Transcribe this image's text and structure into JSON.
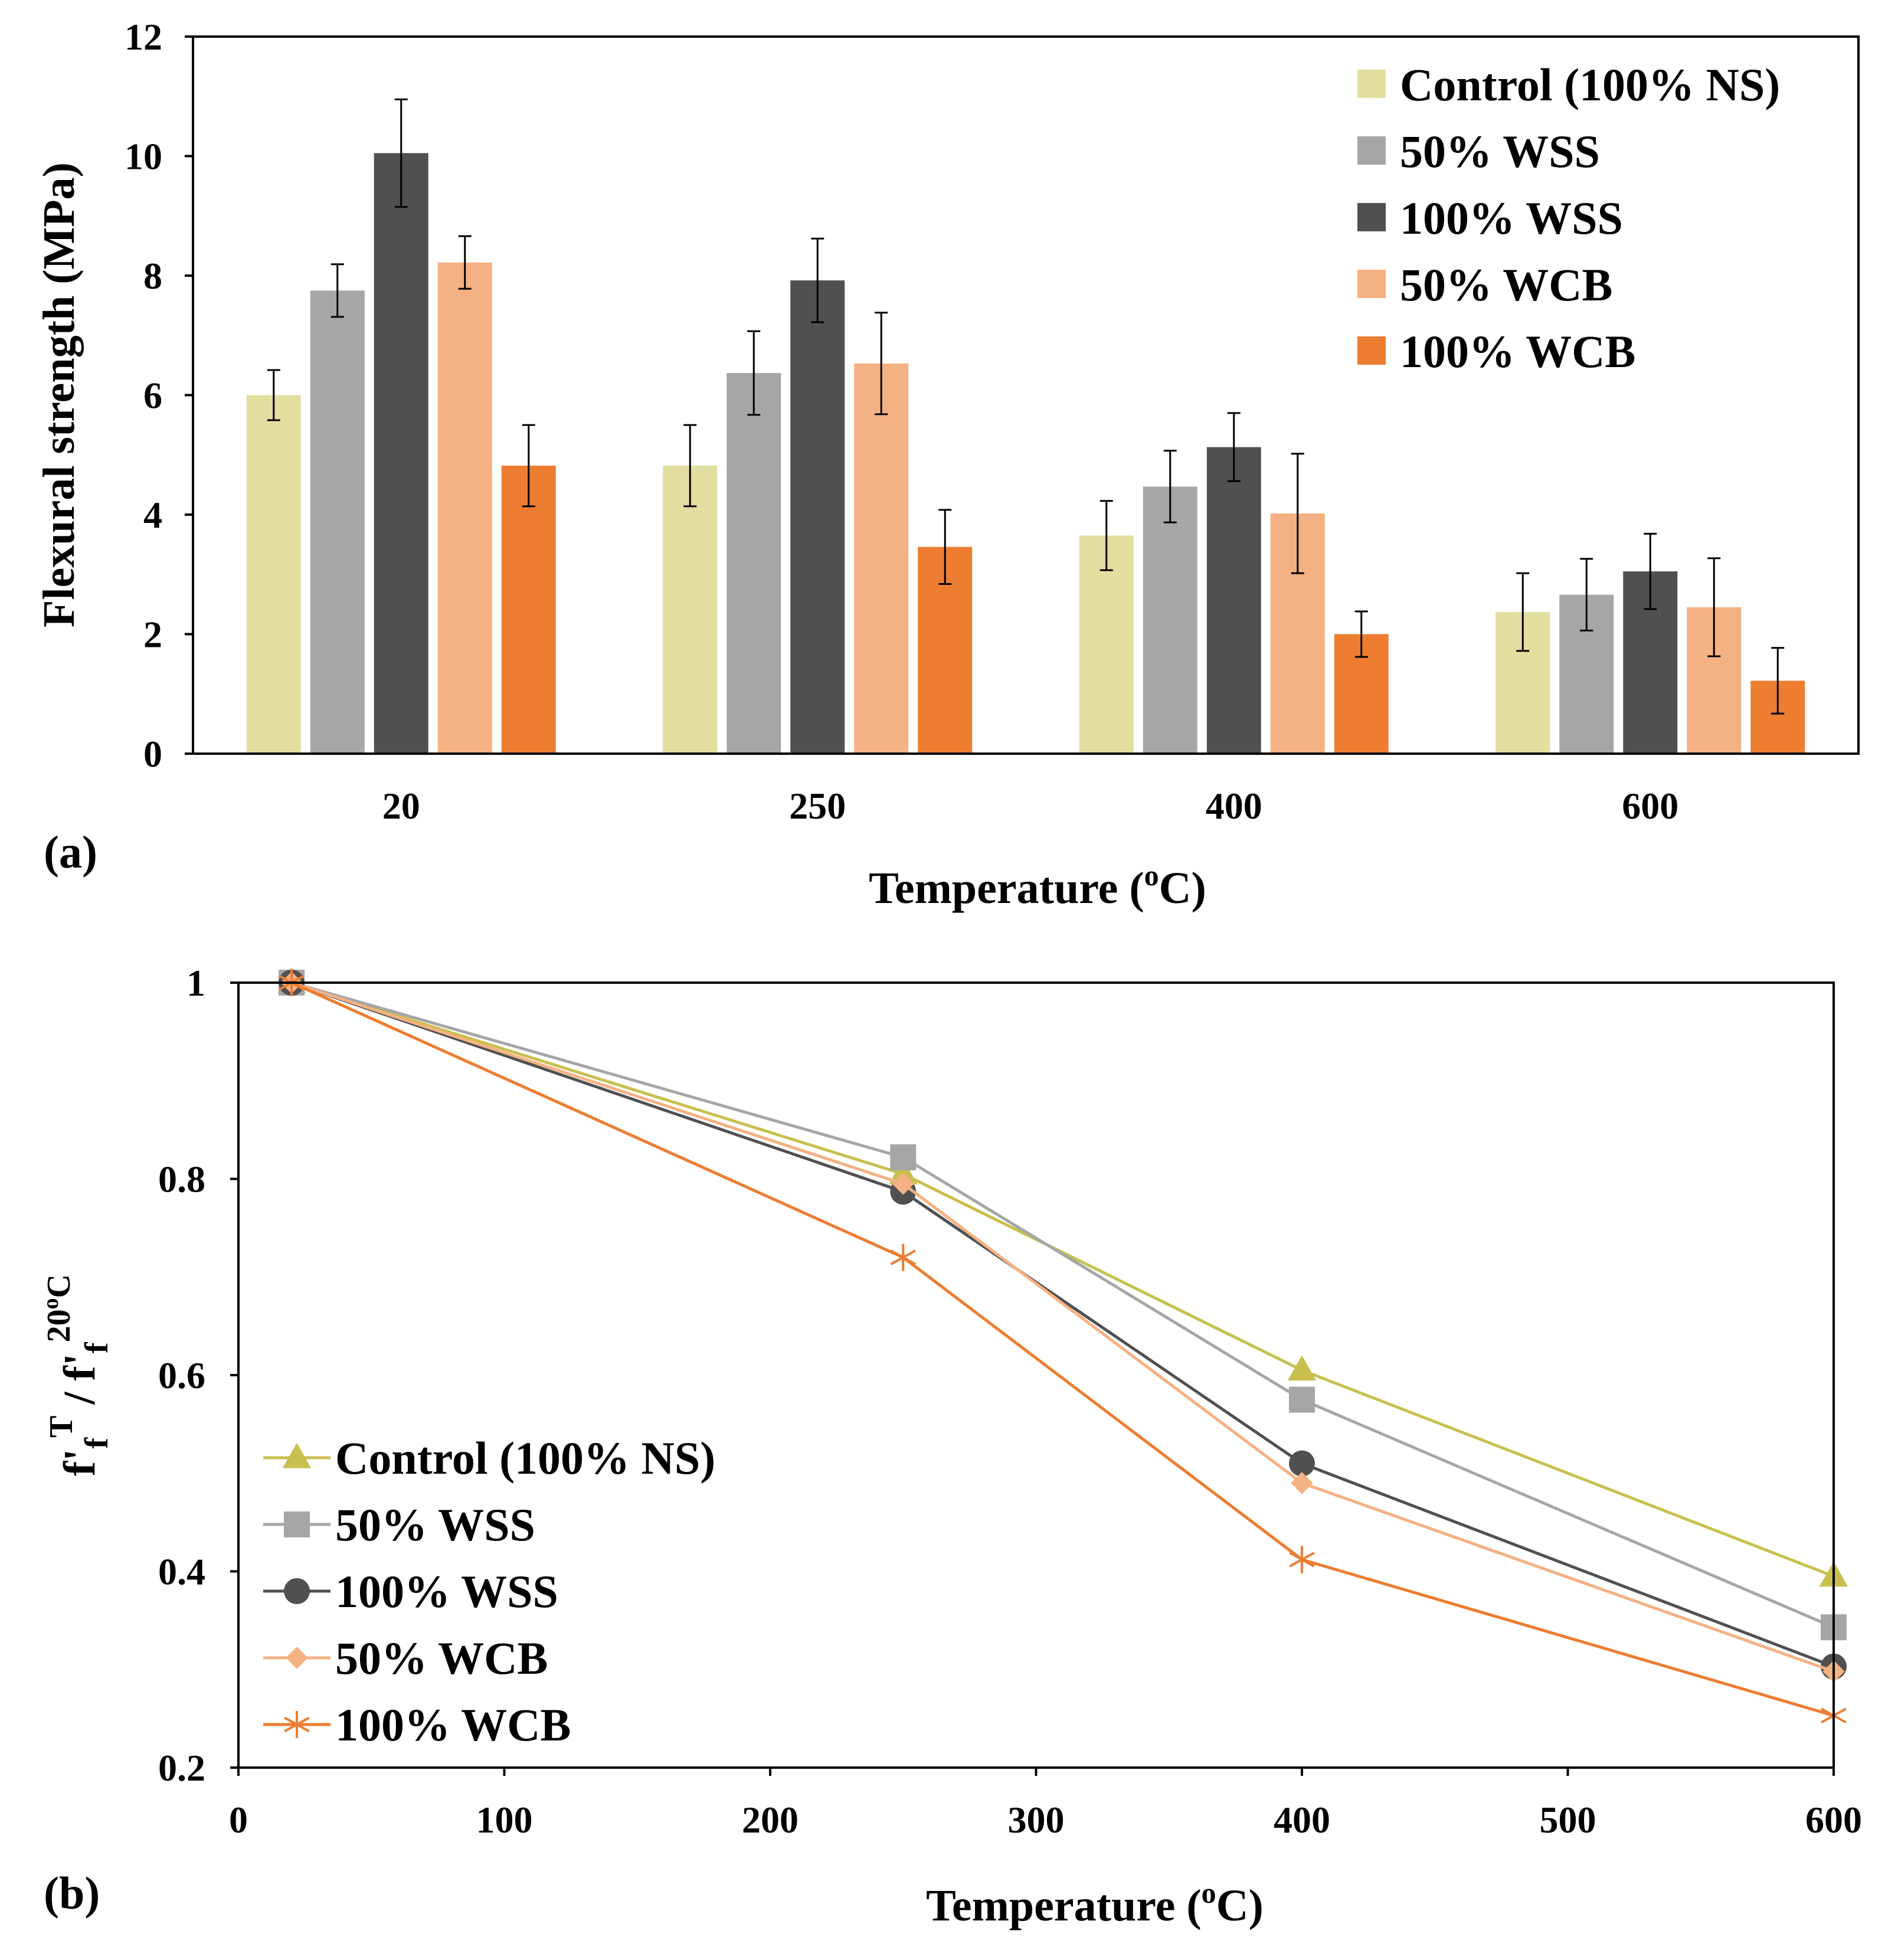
{
  "colors": {
    "control": "#e2de9f",
    "wss50": "#a6a6a6",
    "wss100": "#505050",
    "wcb50": "#f4b183",
    "wcb100": "#ed7d31",
    "control_line": "#c9bf4f",
    "wss50_line": "#a6a6a6",
    "wss100_line": "#505050",
    "wcb50_line": "#f4b183",
    "wcb100_line": "#ed7d31"
  },
  "chart_data": [
    {
      "type": "bar",
      "panel_label": "(a)",
      "categories": [
        "20",
        "250",
        "400",
        "600"
      ],
      "xlabel": "Temperature (",
      "xlabel_sup": "o",
      "xlabel_tail": "C)",
      "ylabel": "Flexural strength (MPa)",
      "ylim": [
        0,
        12
      ],
      "yticks": [
        0,
        2,
        4,
        6,
        8,
        10,
        12
      ],
      "legend_position": "top-right",
      "series": [
        {
          "name": "Control (100% NS)",
          "color_key": "control",
          "values": [
            6.0,
            4.82,
            3.65,
            2.37
          ],
          "errors": [
            0.42,
            0.68,
            0.58,
            0.65
          ]
        },
        {
          "name": "50% WSS",
          "color_key": "wss50",
          "values": [
            7.75,
            6.37,
            4.47,
            2.66
          ],
          "errors": [
            0.44,
            0.7,
            0.6,
            0.6
          ]
        },
        {
          "name": "100% WSS",
          "color_key": "wss100",
          "values": [
            10.05,
            7.92,
            5.13,
            3.05
          ],
          "errors": [
            0.9,
            0.7,
            0.57,
            0.63
          ]
        },
        {
          "name": "50% WCB",
          "color_key": "wcb50",
          "values": [
            8.22,
            6.53,
            4.02,
            2.45
          ],
          "errors": [
            0.44,
            0.85,
            1.0,
            0.82
          ]
        },
        {
          "name": "100% WCB",
          "color_key": "wcb100",
          "values": [
            4.82,
            3.46,
            2.0,
            1.22
          ],
          "errors": [
            0.68,
            0.62,
            0.38,
            0.55
          ]
        }
      ]
    },
    {
      "type": "line",
      "panel_label": "(b)",
      "x": [
        20,
        250,
        400,
        600
      ],
      "xlim": [
        0,
        600
      ],
      "xticks": [
        0,
        100,
        200,
        300,
        400,
        500,
        600
      ],
      "ylim": [
        0.2,
        1.0
      ],
      "yticks": [
        0.2,
        0.4,
        0.6,
        0.8,
        1.0
      ],
      "ytick_labels": [
        "0.2",
        "0.4",
        "0.6",
        "0.8",
        "1"
      ],
      "xlabel": "Temperature (",
      "xlabel_sup": "o",
      "xlabel_tail": "C)",
      "ylabel_main": "f'",
      "ylabel_sub1": "f",
      "ylabel_sup1": "T",
      "ylabel_mid": " / f'",
      "ylabel_sub2": "f",
      "ylabel_sup2": "20",
      "ylabel_sup2b": "o",
      "ylabel_sup2c": "C",
      "legend_position": "bottom-left",
      "series": [
        {
          "name": "Control (100% NS)",
          "color_key": "control_line",
          "marker": "triangle",
          "values": [
            1.0,
            0.805,
            0.605,
            0.395
          ]
        },
        {
          "name": "50% WSS",
          "color_key": "wss50_line",
          "marker": "square",
          "values": [
            1.0,
            0.822,
            0.575,
            0.343
          ]
        },
        {
          "name": "100% WSS",
          "color_key": "wss100_line",
          "marker": "circle",
          "values": [
            1.0,
            0.787,
            0.51,
            0.303
          ]
        },
        {
          "name": "50% WCB",
          "color_key": "wcb50_line",
          "marker": "diamond",
          "values": [
            1.0,
            0.795,
            0.49,
            0.298
          ]
        },
        {
          "name": "100% WCB",
          "color_key": "wcb100_line",
          "marker": "asterisk",
          "values": [
            1.0,
            0.72,
            0.412,
            0.253
          ]
        }
      ]
    }
  ]
}
